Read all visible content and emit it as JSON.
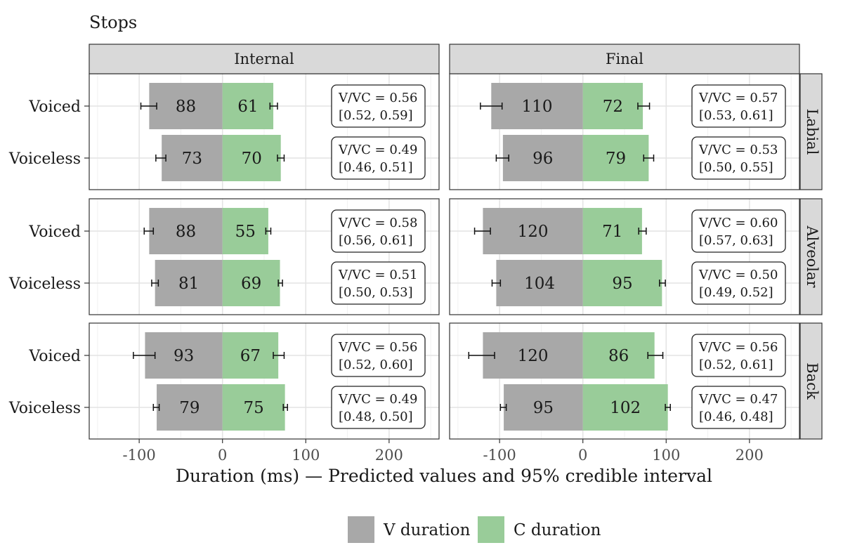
{
  "chart_data": {
    "type": "bar",
    "title": "Stops",
    "xlabel": "Duration (ms) — Predicted values and 95% credible interval",
    "ylabel": "",
    "xlim": [
      -160,
      260
    ],
    "xticks": [
      -100,
      0,
      100,
      200
    ],
    "xtick_labels": [
      "-100",
      "0",
      "100",
      "200"
    ],
    "grid": true,
    "legend_position": "bottom",
    "columns": [
      "Internal",
      "Final"
    ],
    "rows": [
      "Labial",
      "Alveolar",
      "Back"
    ],
    "categories": [
      "Voiced",
      "Voiceless"
    ],
    "series": [
      {
        "name": "V duration",
        "color": "#a8a8a8"
      },
      {
        "name": "C duration",
        "color": "#99cc99"
      }
    ],
    "panels": [
      {
        "column": "Internal",
        "row": "Labial",
        "bars": [
          {
            "category": "Voiced",
            "v": 88,
            "c": 61,
            "v_ci": [
              79,
              98
            ],
            "c_ci": [
              57,
              66
            ],
            "ratio": "V/VC = 0.56",
            "ci": "[0.52, 0.59]"
          },
          {
            "category": "Voiceless",
            "v": 73,
            "c": 70,
            "v_ci": [
              68,
              80
            ],
            "c_ci": [
              66,
              74
            ],
            "ratio": "V/VC = 0.49",
            "ci": "[0.46, 0.51]"
          }
        ]
      },
      {
        "column": "Final",
        "row": "Labial",
        "bars": [
          {
            "category": "Voiced",
            "v": 110,
            "c": 72,
            "v_ci": [
              97,
              123
            ],
            "c_ci": [
              66,
              80
            ],
            "ratio": "V/VC = 0.57",
            "ci": "[0.53, 0.61]"
          },
          {
            "category": "Voiceless",
            "v": 96,
            "c": 79,
            "v_ci": [
              89,
              104
            ],
            "c_ci": [
              73,
              85
            ],
            "ratio": "V/VC = 0.53",
            "ci": "[0.50, 0.55]"
          }
        ]
      },
      {
        "column": "Internal",
        "row": "Alveolar",
        "bars": [
          {
            "category": "Voiced",
            "v": 88,
            "c": 55,
            "v_ci": [
              83,
              94
            ],
            "c_ci": [
              52,
              58
            ],
            "ratio": "V/VC = 0.58",
            "ci": "[0.56, 0.61]"
          },
          {
            "category": "Voiceless",
            "v": 81,
            "c": 69,
            "v_ci": [
              77,
              85
            ],
            "c_ci": [
              67,
              72
            ],
            "ratio": "V/VC = 0.51",
            "ci": "[0.50, 0.53]"
          }
        ]
      },
      {
        "column": "Final",
        "row": "Alveolar",
        "bars": [
          {
            "category": "Voiced",
            "v": 120,
            "c": 71,
            "v_ci": [
              111,
              130
            ],
            "c_ci": [
              67,
              76
            ],
            "ratio": "V/VC = 0.60",
            "ci": "[0.57, 0.63]"
          },
          {
            "category": "Voiceless",
            "v": 104,
            "c": 95,
            "v_ci": [
              99,
              109
            ],
            "c_ci": [
              92,
              99
            ],
            "ratio": "V/VC = 0.50",
            "ci": "[0.49, 0.52]"
          }
        ]
      },
      {
        "column": "Internal",
        "row": "Back",
        "bars": [
          {
            "category": "Voiced",
            "v": 93,
            "c": 67,
            "v_ci": [
              81,
              107
            ],
            "c_ci": [
              61,
              74
            ],
            "ratio": "V/VC = 0.56",
            "ci": "[0.52, 0.60]"
          },
          {
            "category": "Voiceless",
            "v": 79,
            "c": 75,
            "v_ci": [
              76,
              83
            ],
            "c_ci": [
              73,
              78
            ],
            "ratio": "V/VC = 0.49",
            "ci": "[0.48, 0.50]"
          }
        ]
      },
      {
        "column": "Final",
        "row": "Back",
        "bars": [
          {
            "category": "Voiced",
            "v": 120,
            "c": 86,
            "v_ci": [
              106,
              137
            ],
            "c_ci": [
              78,
              96
            ],
            "ratio": "V/VC = 0.56",
            "ci": "[0.52, 0.61]"
          },
          {
            "category": "Voiceless",
            "v": 95,
            "c": 102,
            "v_ci": [
              92,
              99
            ],
            "c_ci": [
              99,
              105
            ],
            "ratio": "V/VC = 0.47",
            "ci": "[0.46, 0.48]"
          }
        ]
      }
    ]
  }
}
